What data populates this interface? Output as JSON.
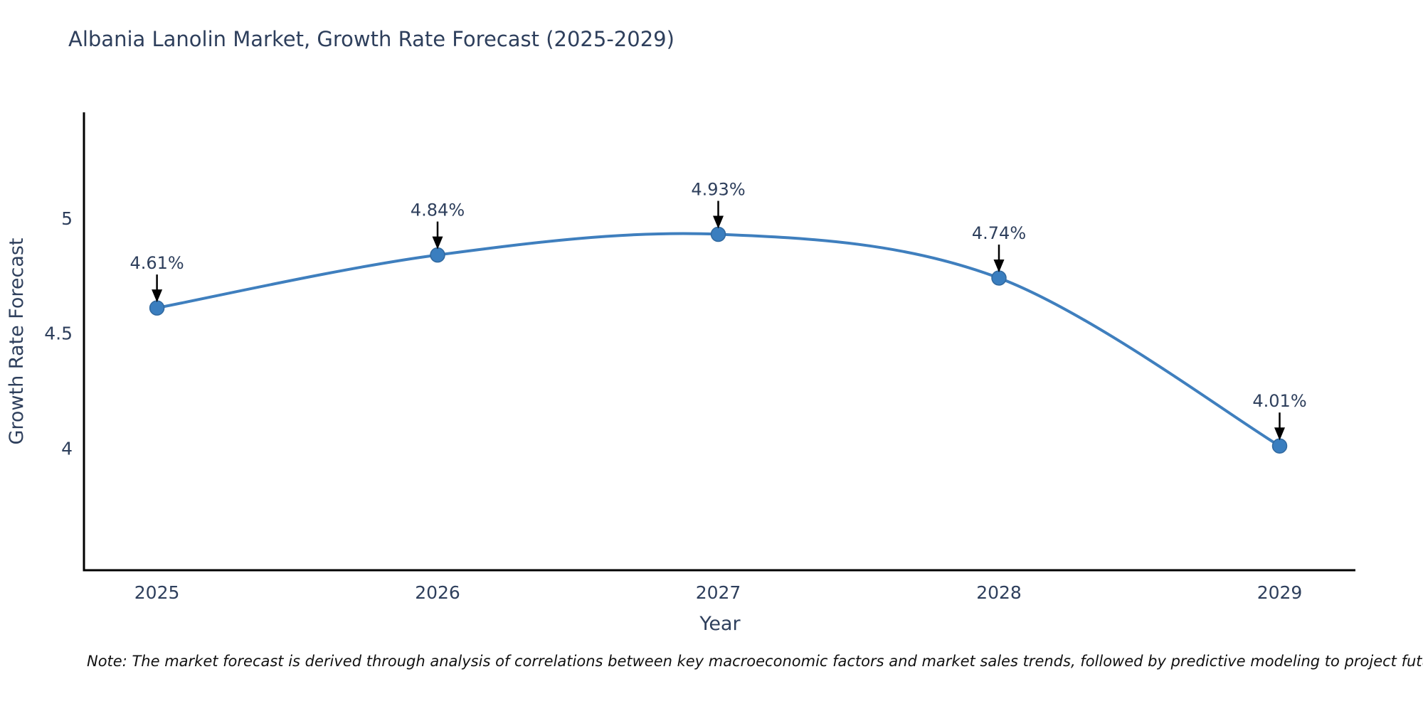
{
  "title": "Albania Lanolin Market, Growth Rate Forecast (2025-2029)",
  "note": "Note: The market forecast is derived through analysis of correlations between key macroeconomic factors and market sales trends, followed by predictive modeling to project future sales",
  "chart_data": {
    "type": "line",
    "title": "Albania Lanolin Market, Growth Rate Forecast (2025-2029)",
    "xlabel": "Year",
    "ylabel": "Growth Rate Forecast",
    "x": [
      2025,
      2026,
      2027,
      2028,
      2029
    ],
    "values": [
      4.61,
      4.84,
      4.93,
      4.74,
      4.01
    ],
    "point_labels": [
      "4.61%",
      "4.84%",
      "4.93%",
      "4.74%",
      "4.01%"
    ],
    "xticks": [
      "2025",
      "2026",
      "2027",
      "2028",
      "2029"
    ],
    "yticks": [
      {
        "value": 4,
        "label": "4"
      },
      {
        "value": 4.5,
        "label": "4.5"
      },
      {
        "value": 5,
        "label": "5"
      }
    ],
    "xlim": [
      2024.74,
      2029.27
    ],
    "ylim": [
      3.47,
      5.46
    ],
    "grid": false,
    "legend": false,
    "line_color": "#3f7fbe",
    "marker_color": "#3a7ebf",
    "marker_edge_color": "#31699f",
    "axis_color": "#000000",
    "arrow_color": "#000000",
    "text_color": "#2e3f5c"
  }
}
